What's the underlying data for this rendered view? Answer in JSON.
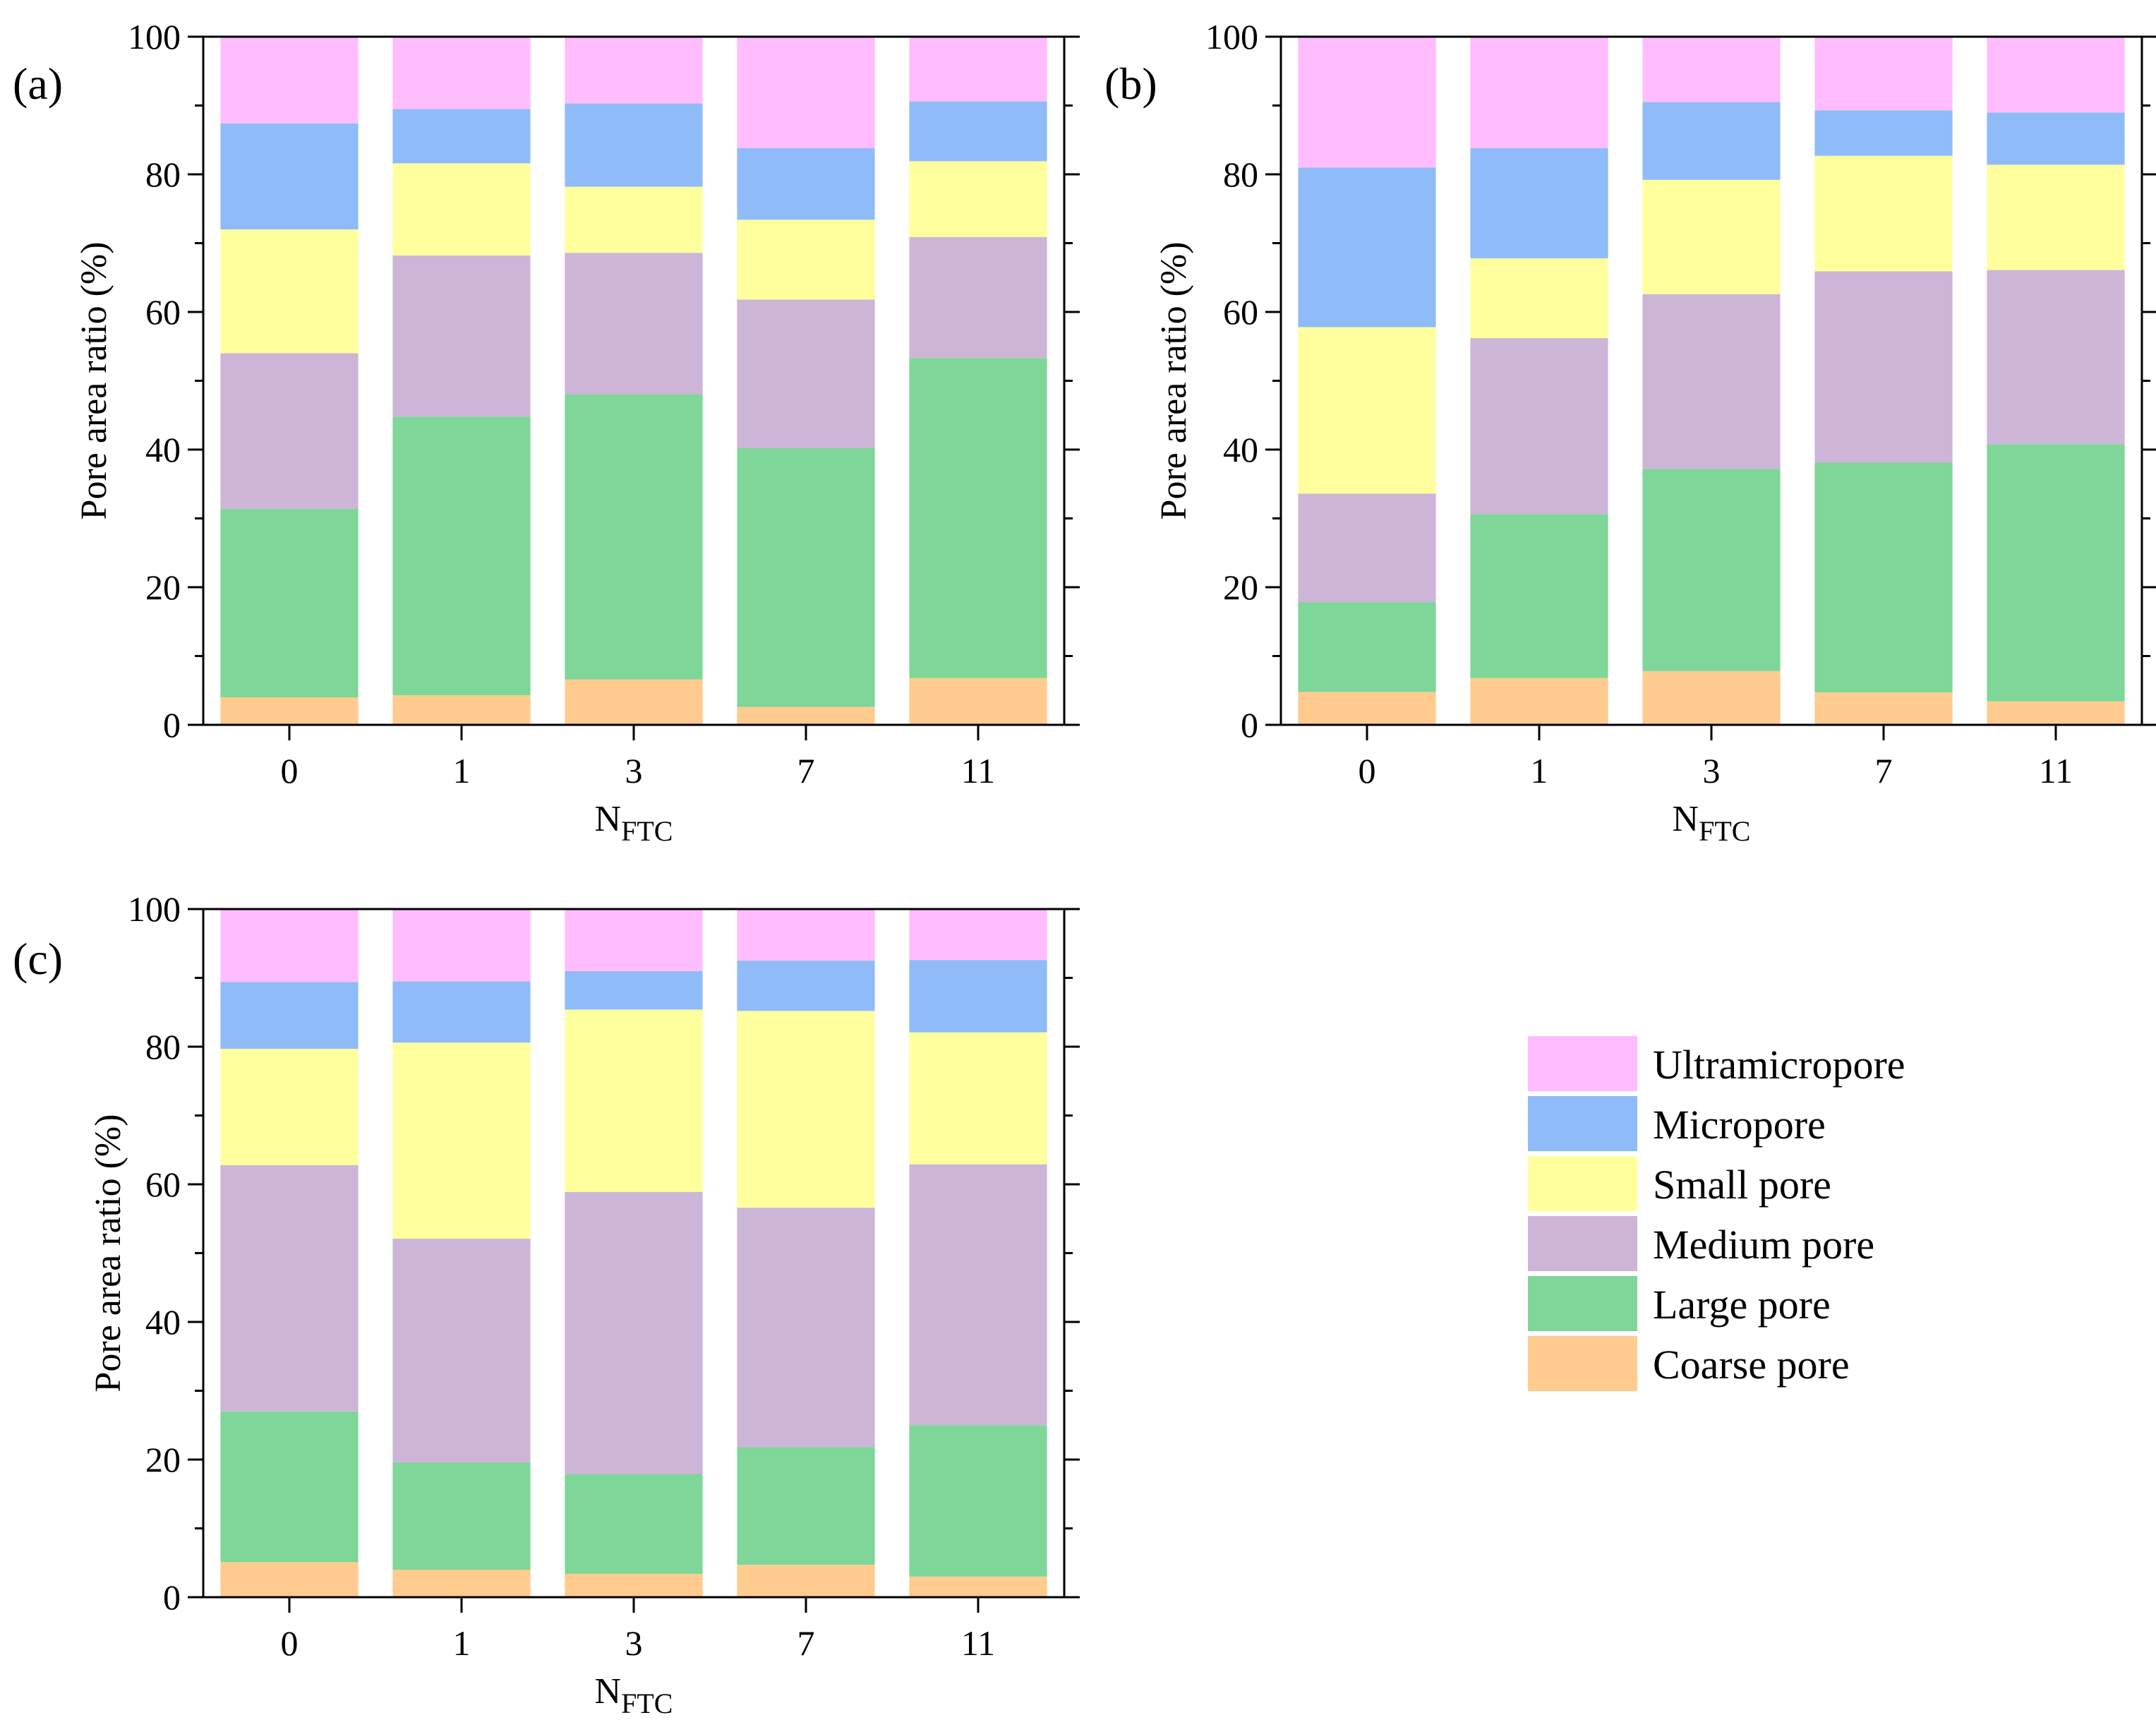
{
  "chart_data": [
    {
      "type": "bar",
      "stacked": true,
      "panel_label": "(a)",
      "categories": [
        "0",
        "1",
        "3",
        "7",
        "11"
      ],
      "ylabel": "Pore area ratio (%)",
      "xlabel": "N",
      "xlabel_sub": "FTC",
      "ylim": [
        0,
        100
      ],
      "yticks": [
        "0",
        "20",
        "40",
        "60",
        "80",
        "100"
      ],
      "grid": false,
      "series": [
        {
          "name": "Coarse pore",
          "values": [
            4.0,
            4.3,
            6.6,
            2.6,
            6.8
          ]
        },
        {
          "name": "Large pore",
          "values": [
            27.4,
            40.5,
            41.4,
            37.6,
            46.5
          ]
        },
        {
          "name": "Medium pore",
          "values": [
            22.6,
            23.4,
            20.6,
            21.6,
            17.6
          ]
        },
        {
          "name": "Small pore",
          "values": [
            18.0,
            13.4,
            9.6,
            11.6,
            11.0
          ]
        },
        {
          "name": "Micropore",
          "values": [
            15.4,
            7.9,
            12.1,
            10.4,
            8.7
          ]
        },
        {
          "name": "Ultramicropore",
          "values": [
            12.6,
            10.5,
            9.7,
            16.2,
            9.4
          ]
        }
      ]
    },
    {
      "type": "bar",
      "stacked": true,
      "panel_label": "(b)",
      "categories": [
        "0",
        "1",
        "3",
        "7",
        "11"
      ],
      "ylabel": "Pore area ratio (%)",
      "xlabel": "N",
      "xlabel_sub": "FTC",
      "ylim": [
        0,
        100
      ],
      "yticks": [
        "0",
        "20",
        "40",
        "60",
        "80",
        "100"
      ],
      "grid": false,
      "series": [
        {
          "name": "Coarse pore",
          "values": [
            4.8,
            6.8,
            7.8,
            4.7,
            3.4
          ]
        },
        {
          "name": "Large pore",
          "values": [
            13.0,
            23.8,
            29.4,
            33.4,
            37.4
          ]
        },
        {
          "name": "Medium pore",
          "values": [
            15.8,
            25.6,
            25.4,
            27.8,
            25.3
          ]
        },
        {
          "name": "Small pore",
          "values": [
            24.2,
            11.6,
            16.6,
            16.8,
            15.3
          ]
        },
        {
          "name": "Micropore",
          "values": [
            23.2,
            16.0,
            11.3,
            6.6,
            7.6
          ]
        },
        {
          "name": "Ultramicropore",
          "values": [
            19.0,
            16.2,
            9.5,
            10.7,
            11.0
          ]
        }
      ]
    },
    {
      "type": "bar",
      "stacked": true,
      "panel_label": "(c)",
      "categories": [
        "0",
        "1",
        "3",
        "7",
        "11"
      ],
      "ylabel": "Pore area ratio (%)",
      "xlabel": "N",
      "xlabel_sub": "FTC",
      "ylim": [
        0,
        100
      ],
      "yticks": [
        "0",
        "20",
        "40",
        "60",
        "80",
        "100"
      ],
      "grid": false,
      "series": [
        {
          "name": "Coarse pore",
          "values": [
            5.1,
            4.0,
            3.4,
            4.7,
            3.0
          ]
        },
        {
          "name": "Large pore",
          "values": [
            21.9,
            15.6,
            14.5,
            17.1,
            22.0
          ]
        },
        {
          "name": "Medium pore",
          "values": [
            35.8,
            32.5,
            41.0,
            34.8,
            37.9
          ]
        },
        {
          "name": "Small pore",
          "values": [
            16.9,
            28.5,
            26.5,
            28.6,
            19.2
          ]
        },
        {
          "name": "Micropore",
          "values": [
            9.7,
            8.9,
            5.6,
            7.3,
            10.5
          ]
        },
        {
          "name": "Ultramicropore",
          "values": [
            10.6,
            10.5,
            9.0,
            7.5,
            7.4
          ]
        }
      ]
    }
  ],
  "legend": {
    "items": [
      {
        "name": "Ultramicropore",
        "color": "#FFBCFF"
      },
      {
        "name": "Micropore",
        "color": "#8FBCF8"
      },
      {
        "name": "Small pore",
        "color": "#FFFF9E"
      },
      {
        "name": "Medium pore",
        "color": "#CDB5D8"
      },
      {
        "name": "Large pore",
        "color": "#7ED698"
      },
      {
        "name": "Coarse pore",
        "color": "#FFCB8E"
      }
    ]
  },
  "colors": {
    "Coarse pore": "#FFCB8E",
    "Large pore": "#7ED698",
    "Medium pore": "#CDB5D8",
    "Small pore": "#FFFF9E",
    "Micropore": "#8FBCF8",
    "Ultramicropore": "#FFBCFF"
  }
}
